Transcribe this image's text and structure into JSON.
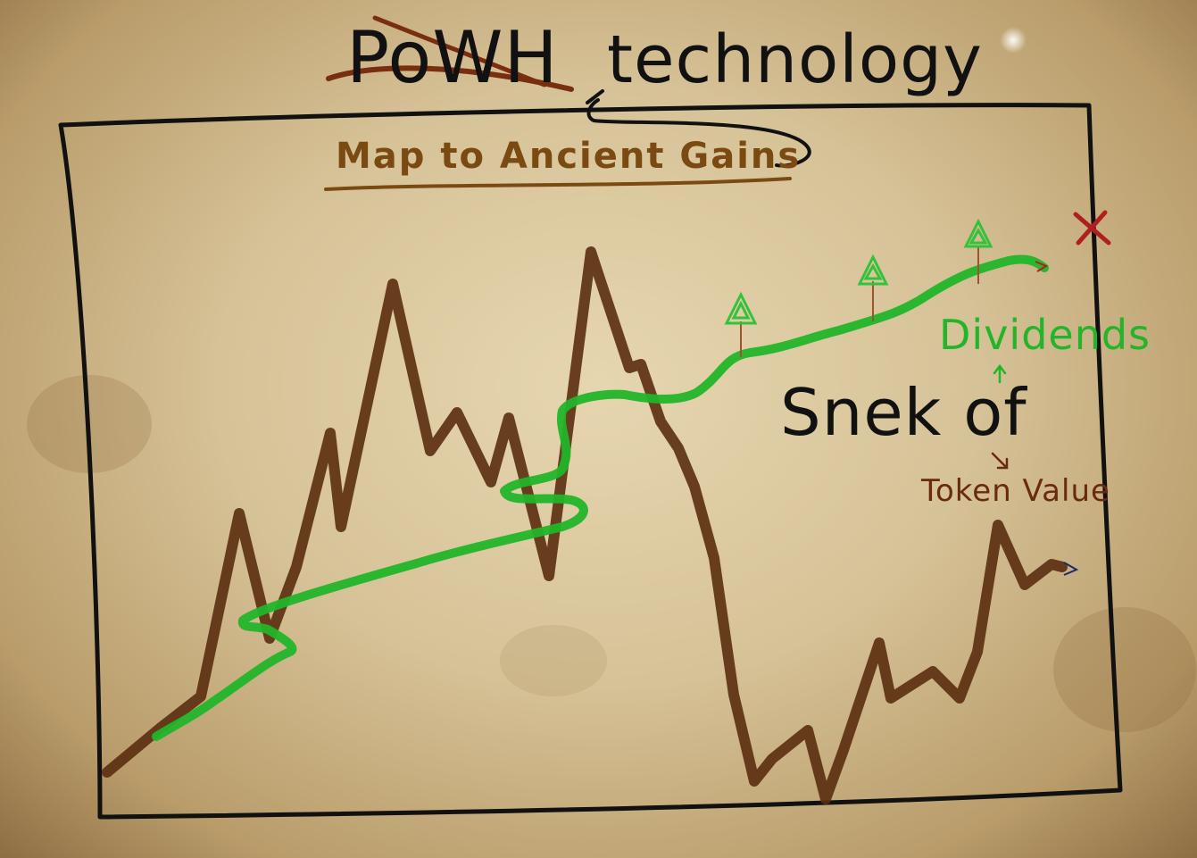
{
  "title": {
    "struck_word": "PoWH",
    "main_word": "technology"
  },
  "subtitle": "Map to Ancient Gains",
  "labels": {
    "snek_of": "Snek of",
    "dividends": "Dividends",
    "token_value": "Token Value"
  },
  "colors": {
    "parchment": "#d6c297",
    "ink": "#111111",
    "subtitle": "#7a4a12",
    "green_line": "#22b52a",
    "brown_line": "#5a2e10",
    "x_mark": "#b01f1f",
    "tree": "#34c23a"
  },
  "icons": [
    "x-mark-icon",
    "tree-icon",
    "snake-head-icon",
    "arrow-icon"
  ]
}
